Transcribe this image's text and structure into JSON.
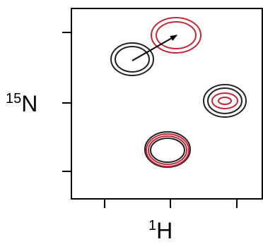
{
  "axes": {
    "y_label": {
      "superscript": "15",
      "base": "N"
    },
    "x_label": {
      "superscript": "1",
      "base": "H"
    }
  }
}
